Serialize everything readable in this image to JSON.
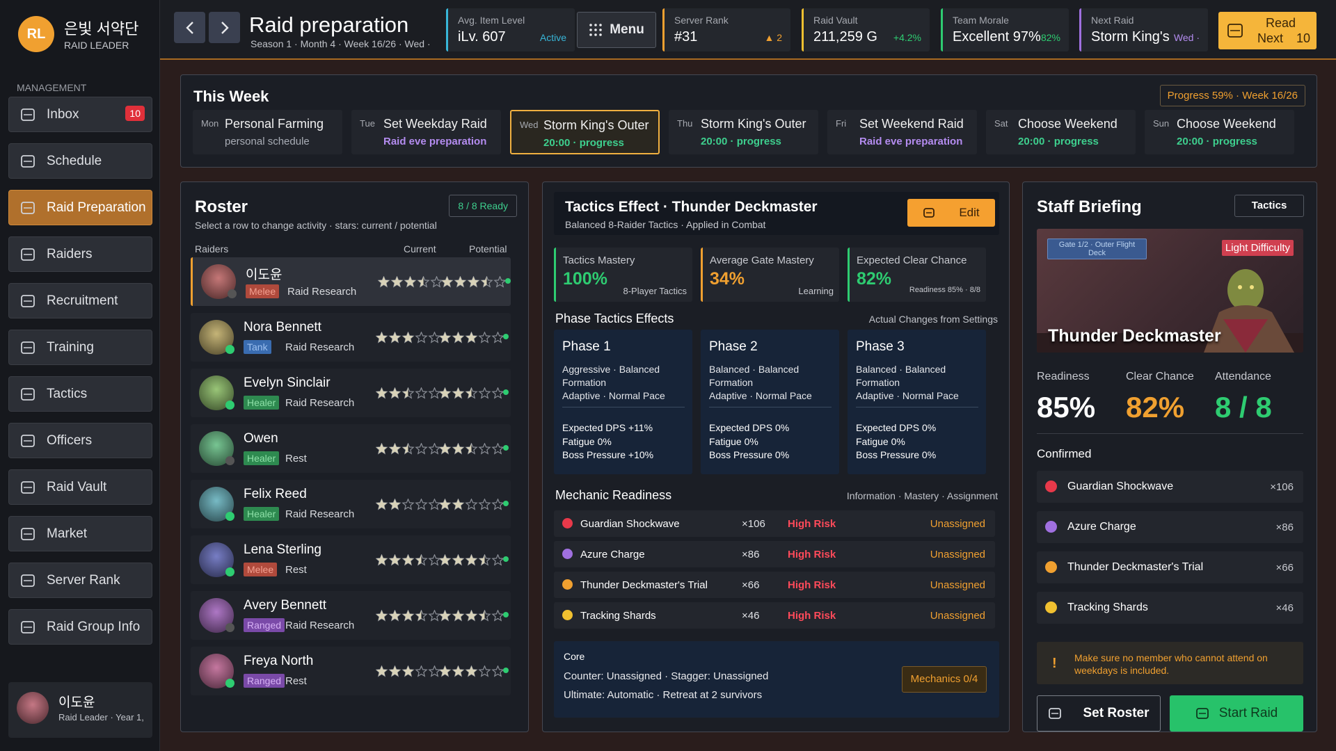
{
  "sidebar": {
    "avatar": "RL",
    "guild": "은빛 서약단",
    "role": "RAID LEADER",
    "section": "MANAGEMENT",
    "nav": [
      {
        "label": "Inbox",
        "badge": "10"
      },
      {
        "label": "Schedule"
      },
      {
        "label": "Raid Preparation",
        "active": true
      },
      {
        "label": "Raiders"
      },
      {
        "label": "Recruitment"
      },
      {
        "label": "Training"
      },
      {
        "label": "Tactics"
      },
      {
        "label": "Officers"
      },
      {
        "label": "Raid Vault"
      },
      {
        "label": "Market"
      },
      {
        "label": "Server Rank"
      },
      {
        "label": "Raid Group Info"
      }
    ],
    "profile": {
      "name": "이도윤",
      "subtitle": "Raid Leader · Year 1,"
    }
  },
  "header": {
    "title": "Raid preparation",
    "subtitle": "Season 1 · Month 4 · Week 16/26 · Wed ·",
    "menu": "Menu",
    "stats": [
      {
        "label": "Avg. Item Level",
        "value": "iLv. 607",
        "note": "Active",
        "color": "#38b6d8",
        "note_color": "#38b6d8"
      },
      {
        "label": "Server Rank",
        "value": "#31",
        "note": "▲ 2",
        "color": "#f0a030",
        "note_color": "#f0a030"
      },
      {
        "label": "Raid Vault",
        "value": "211,259 G",
        "note": "+4.2%",
        "color": "#f0c030",
        "note_color": "#2ecc71"
      },
      {
        "label": "Team Morale",
        "value": "Excellent 97%",
        "note": "82%",
        "color": "#2ecc71",
        "note_color": "#2ecc71"
      },
      {
        "label": "Next Raid",
        "value": "Storm King's",
        "note": "Wed ·",
        "color": "#a070e0",
        "note_color": "#b48cf0"
      }
    ],
    "read": {
      "line1": "Read",
      "line2": "Next",
      "count": "10"
    }
  },
  "week": {
    "title": "This Week",
    "progress": "Progress 59% · Week 16/26",
    "days": [
      {
        "day": "Mon",
        "title": "Personal Farming",
        "sub": "personal schedule",
        "sub_color": "#a9adb6"
      },
      {
        "day": "Tue",
        "title": "Set Weekday Raid",
        "sub": "Raid eve preparation",
        "sub_color": "#b48cf0"
      },
      {
        "day": "Wed",
        "title": "Storm King's Outer",
        "sub": "20:00 · progress",
        "sub_color": "#3ecf8e",
        "selected": true
      },
      {
        "day": "Thu",
        "title": "Storm King's Outer",
        "sub": "20:00 · progress",
        "sub_color": "#3ecf8e"
      },
      {
        "day": "Fri",
        "title": "Set Weekend Raid",
        "sub": "Raid eve preparation",
        "sub_color": "#b48cf0"
      },
      {
        "day": "Sat",
        "title": "Choose Weekend",
        "sub": "20:00 · progress",
        "sub_color": "#3ecf8e"
      },
      {
        "day": "Sun",
        "title": "Choose Weekend",
        "sub": "20:00 · progress",
        "sub_color": "#3ecf8e"
      }
    ]
  },
  "roster": {
    "title": "Roster",
    "ready": "8 / 8 Ready",
    "hint": "Select a row to change activity · stars: current / potential",
    "columns": [
      "Raiders",
      "Current",
      "Potential"
    ],
    "rows": [
      {
        "name": "이도윤",
        "role": "Melee",
        "activity": "Raid Research",
        "current": 3.5,
        "potential": 3.5,
        "selected": true
      },
      {
        "name": "Nora Bennett",
        "role": "Tank",
        "activity": "Raid Research",
        "current": 3,
        "potential": 3
      },
      {
        "name": "Evelyn Sinclair",
        "role": "Healer",
        "activity": "Raid Research",
        "current": 2.5,
        "potential": 2.5
      },
      {
        "name": "Owen",
        "role": "Healer",
        "activity": "Rest",
        "current": 2.5,
        "potential": 2.5
      },
      {
        "name": "Felix Reed",
        "role": "Healer",
        "activity": "Raid Research",
        "current": 2,
        "potential": 2
      },
      {
        "name": "Lena Sterling",
        "role": "Melee",
        "activity": "Rest",
        "current": 3.5,
        "potential": 3.5
      },
      {
        "name": "Avery Bennett",
        "role": "Ranged",
        "activity": "Raid Research",
        "current": 3.5,
        "potential": 3.5
      },
      {
        "name": "Freya North",
        "role": "Ranged",
        "activity": "Rest",
        "current": 3,
        "potential": 3
      }
    ]
  },
  "tactics": {
    "title": "Tactics Effect · Thunder Deckmaster",
    "subtitle": "Balanced 8-Raider Tactics · Applied in Combat",
    "edit": "Edit",
    "metrics": [
      {
        "label": "Tactics Mastery",
        "value": "100%",
        "note": "8-Player Tactics",
        "color": "#2ecc71"
      },
      {
        "label": "Average Gate Mastery",
        "value": "34%",
        "note": "Learning",
        "color": "#f0a030"
      },
      {
        "label": "Expected Clear Chance",
        "value": "82%",
        "note": "Readiness 85% · 8/8",
        "color": "#2ecc71"
      }
    ],
    "phase_title": "Phase Tactics Effects",
    "phase_note": "Actual Changes from Settings",
    "phases": [
      {
        "name": "Phase 1",
        "lines": [
          "Aggressive · Balanced Formation",
          "Adaptive · Normal Pace"
        ],
        "effects": [
          "Expected DPS +11%",
          "Fatigue 0%",
          "Boss Pressure +10%"
        ]
      },
      {
        "name": "Phase 2",
        "lines": [
          "Balanced · Balanced Formation",
          "Adaptive · Normal Pace"
        ],
        "effects": [
          "Expected DPS 0%",
          "Fatigue 0%",
          "Boss Pressure 0%"
        ]
      },
      {
        "name": "Phase 3",
        "lines": [
          "Balanced · Balanced Formation",
          "Adaptive · Normal Pace"
        ],
        "effects": [
          "Expected DPS 0%",
          "Fatigue 0%",
          "Boss Pressure 0%"
        ]
      }
    ],
    "mechanics_title": "Mechanic Readiness",
    "mechanics_note": "Information · Mastery · Assignment",
    "mechanics": [
      {
        "name": "Guardian Shockwave",
        "count": "×106",
        "risk": "High Risk",
        "status": "Unassigned",
        "color": "#e8394a"
      },
      {
        "name": "Azure Charge",
        "count": "×86",
        "risk": "High Risk",
        "status": "Unassigned",
        "color": "#a070e0"
      },
      {
        "name": "Thunder Deckmaster's Trial",
        "count": "×66",
        "risk": "High Risk",
        "status": "Unassigned",
        "color": "#f0a030"
      },
      {
        "name": "Tracking Shards",
        "count": "×46",
        "risk": "High Risk",
        "status": "Unassigned",
        "color": "#f0c030"
      }
    ],
    "core": {
      "title": "Core",
      "lines": [
        "Counter: Unassigned · Stagger: Unassigned",
        "Ultimate: Automatic · Retreat at 2 survivors"
      ],
      "button": "Mechanics 0/4"
    }
  },
  "staff": {
    "title": "Staff Briefing",
    "button": "Tactics",
    "gate": "Gate 1/2 · Outer Flight Deck",
    "difficulty": "Light Difficulty",
    "boss": "Thunder Deckmaster",
    "stats": [
      {
        "label": "Readiness",
        "value": "85%",
        "color": "#ffffff"
      },
      {
        "label": "Clear Chance",
        "value": "82%",
        "color": "#f0a030"
      },
      {
        "label": "Attendance",
        "value": "8 / 8",
        "color": "#2ecc71"
      }
    ],
    "confirmed_title": "Confirmed",
    "confirmed": [
      {
        "name": "Guardian Shockwave",
        "count": "×106",
        "color": "#e8394a"
      },
      {
        "name": "Azure Charge",
        "count": "×86",
        "color": "#a070e0"
      },
      {
        "name": "Thunder Deckmaster's Trial",
        "count": "×66",
        "color": "#f0a030"
      },
      {
        "name": "Tracking Shards",
        "count": "×46",
        "color": "#f0c030"
      }
    ],
    "warning_icon": "!",
    "warning": "Make sure no member who cannot attend on weekdays is included.",
    "set_roster": "Set Roster",
    "start": "Start Raid"
  }
}
